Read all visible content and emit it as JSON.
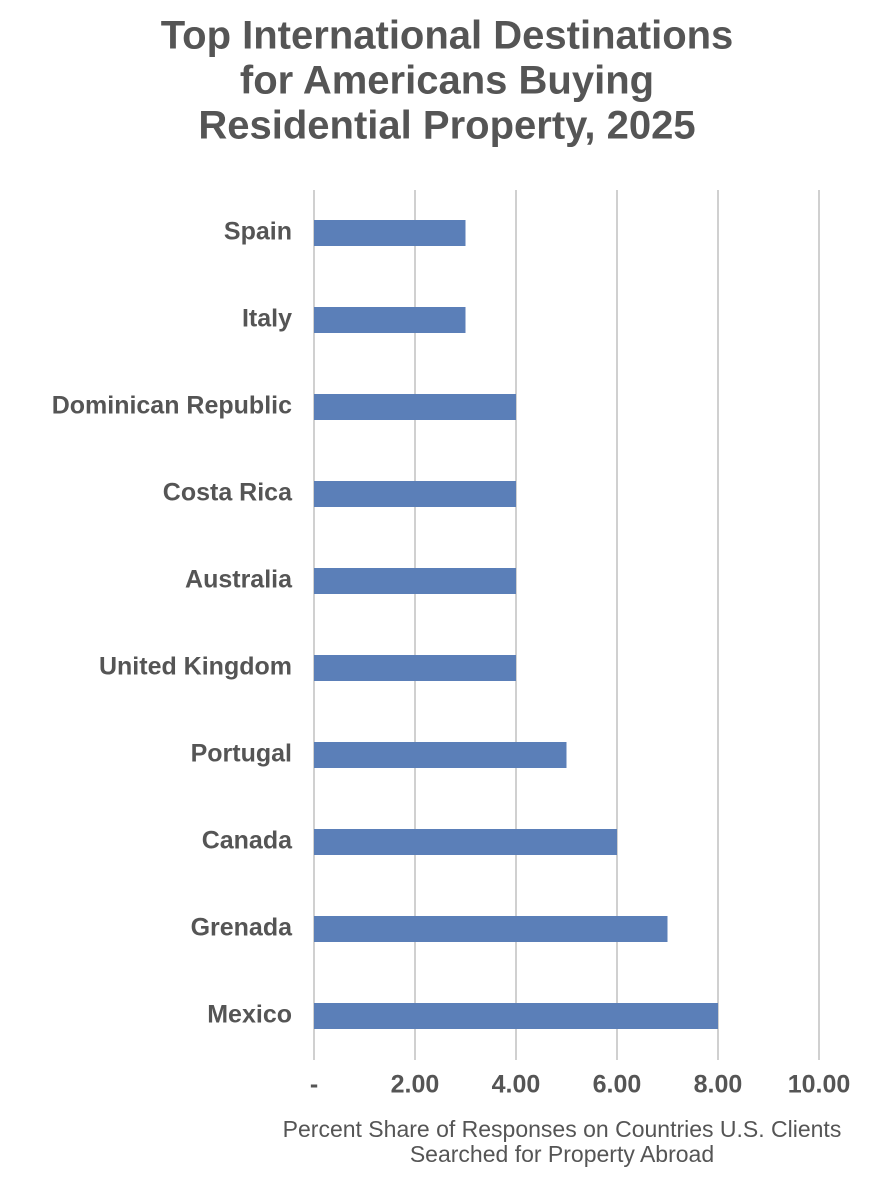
{
  "chart_data": {
    "type": "bar",
    "orientation": "horizontal",
    "title": [
      "Top International Destinations",
      "for Americans Buying",
      "Residential Property, 2025"
    ],
    "categories": [
      "Spain",
      "Italy",
      "Dominican Republic",
      "Costa Rica",
      "Australia",
      "United Kingdom",
      "Portugal",
      "Canada",
      "Grenada",
      "Mexico"
    ],
    "values": [
      3,
      3,
      4,
      4,
      4,
      4,
      5,
      6,
      7,
      8
    ],
    "color": "#5b7fb8",
    "xlim": [
      0,
      10
    ],
    "xticks": [
      {
        "value": 0,
        "label": "-"
      },
      {
        "value": 2,
        "label": "2.00"
      },
      {
        "value": 4,
        "label": "4.00"
      },
      {
        "value": 6,
        "label": "6.00"
      },
      {
        "value": 8,
        "label": "8.00"
      },
      {
        "value": 10,
        "label": "10.00"
      }
    ],
    "xlabel": [
      "Percent Share of Responses on Countries U.S. Clients",
      "Searched for Property Abroad"
    ],
    "grid": true
  }
}
